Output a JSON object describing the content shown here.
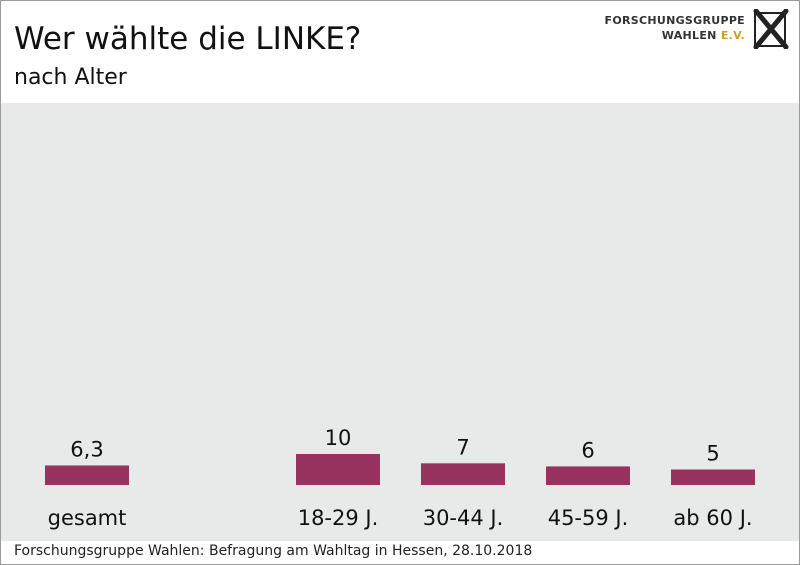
{
  "header": {
    "title": "Wer wählte die LINKE?",
    "subtitle": "nach Alter"
  },
  "logo": {
    "line1": "FORSCHUNGSGRUPPE",
    "line2": "WAHLEN",
    "line2_suffix": "E.V.",
    "icon": "ballot-cross-logo-icon"
  },
  "chart_data": {
    "type": "bar",
    "title": "Wer wählte die LINKE?",
    "subtitle": "nach Alter",
    "categories": [
      "gesamt",
      "18-29 J.",
      "30-44 J.",
      "45-59 J.",
      "ab 60 J."
    ],
    "values": [
      6.3,
      10,
      7,
      6,
      5
    ],
    "value_labels": [
      "6,3",
      "10",
      "7",
      "6",
      "5"
    ],
    "ylim": [
      0,
      55
    ],
    "grid": false,
    "bar_color": "#98325f"
  },
  "colors": {
    "bar": "#98325f",
    "plot_background": "#e8eaea",
    "logo_accent": "#c9a227"
  },
  "footer": {
    "source": "Forschungsgruppe Wahlen: Befragung am Wahltag in Hessen, 28.10.2018"
  }
}
